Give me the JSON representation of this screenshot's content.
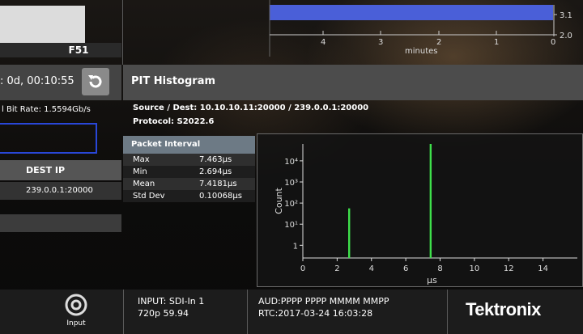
{
  "left_panel": {
    "f_label": "F51",
    "uptime": ": 0d, 00:10:55",
    "bitrate": "l Bit Rate: 1.5594Gb/s",
    "dest_ip_header": "DEST IP",
    "dest_ip_value": "239.0.0.1:20000"
  },
  "top_graph": {
    "right_ticks": [
      "3.1",
      "2.0"
    ],
    "x_ticks": [
      "4",
      "3",
      "2",
      "1",
      "0"
    ],
    "x_label": "minutes"
  },
  "pit": {
    "title": "PIT Histogram",
    "source_dest": "Source / Dest: 10.10.10.11:20000 / 239.0.0.1:20000",
    "protocol": "Protocol: S2022.6"
  },
  "packet_interval": {
    "header": "Packet Interval",
    "rows": [
      {
        "label": "Max",
        "value": "7.463µs"
      },
      {
        "label": "Min",
        "value": "2.694µs"
      },
      {
        "label": "Mean",
        "value": "7.4181µs"
      },
      {
        "label": "Std Dev",
        "value": "0.10068µs"
      }
    ]
  },
  "chart_data": {
    "type": "bar",
    "ylabel": "Count",
    "xlabel": "µs",
    "y_scale": "log",
    "y_ticks": [
      "1",
      "10¹",
      "10²",
      "10³",
      "10⁴"
    ],
    "x_ticks": [
      "0",
      "2",
      "4",
      "6",
      "8",
      "10",
      "12",
      "14"
    ],
    "xlim": [
      0,
      16
    ],
    "ylim_exponent": [
      -0.6,
      4.8
    ],
    "bars": [
      {
        "x": 2.7,
        "count_exp": 1.75
      },
      {
        "x": 7.45,
        "count_exp": 4.8
      }
    ],
    "bar_color": "#3ee04b"
  },
  "bottom": {
    "input_label": "Input",
    "input_line1": "INPUT: SDI-In 1",
    "input_line2": "720p 59.94",
    "aud": "AUD:PPPP PPPP MMMM MMPP",
    "rtc": "RTC:2017-03-24 16:03:28",
    "logo": "Tektronix"
  }
}
